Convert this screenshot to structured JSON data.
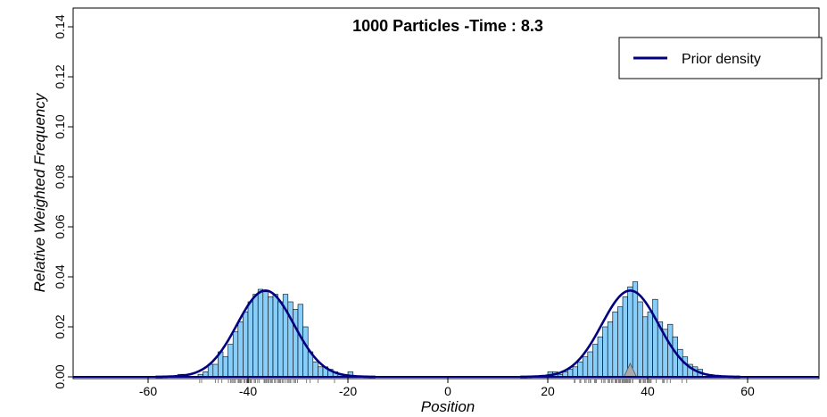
{
  "chart_data": {
    "type": "bar",
    "title": "1000  Particles -Time :   8.3",
    "xlabel": "Position",
    "ylabel": "Relative Weighted Frequency",
    "xlim": [
      -75,
      75
    ],
    "ylim": [
      0,
      0.14
    ],
    "x_ticks": [
      -60,
      -40,
      -20,
      0,
      20,
      40,
      60
    ],
    "y_ticks": [
      0.0,
      0.02,
      0.04,
      0.06,
      0.08,
      0.1,
      0.12,
      0.14
    ],
    "x_tick_labels": [
      "-60",
      "-40",
      "-20",
      "0",
      "20",
      "40",
      "60"
    ],
    "y_tick_labels": [
      "0.00",
      "0.02",
      "0.04",
      "0.06",
      "0.08",
      "0.10",
      "0.12",
      "0.14"
    ],
    "bin_width": 1,
    "histogram": {
      "name": "Relative weighted frequency",
      "bins_start": [
        -54,
        -53,
        -52,
        -51,
        -50,
        -49,
        -48,
        -47,
        -46,
        -45,
        -44,
        -43,
        -42,
        -41,
        -40,
        -39,
        -38,
        -37,
        -36,
        -35,
        -34,
        -33,
        -32,
        -31,
        -30,
        -29,
        -28,
        -27,
        -26,
        -25,
        -24,
        -23,
        -22,
        -21,
        -20,
        20,
        21,
        22,
        23,
        24,
        25,
        26,
        27,
        28,
        29,
        30,
        31,
        32,
        33,
        34,
        35,
        36,
        37,
        38,
        39,
        40,
        41,
        42,
        43,
        44,
        45,
        46,
        47,
        48,
        49,
        50
      ],
      "values": [
        0.001,
        0.001,
        0.0,
        0.0,
        0.001,
        0.002,
        0.005,
        0.005,
        0.01,
        0.008,
        0.013,
        0.018,
        0.022,
        0.026,
        0.03,
        0.033,
        0.035,
        0.034,
        0.032,
        0.033,
        0.03,
        0.033,
        0.03,
        0.027,
        0.029,
        0.02,
        0.01,
        0.006,
        0.004,
        0.004,
        0.003,
        0.002,
        0.001,
        0.0,
        0.002,
        0.002,
        0.002,
        0.001,
        0.002,
        0.003,
        0.004,
        0.006,
        0.008,
        0.01,
        0.013,
        0.016,
        0.02,
        0.022,
        0.026,
        0.028,
        0.032,
        0.036,
        0.038,
        0.03,
        0.024,
        0.026,
        0.031,
        0.022,
        0.019,
        0.021,
        0.016,
        0.011,
        0.008,
        0.005,
        0.004,
        0.003
      ]
    },
    "series": [
      {
        "name": "Prior density",
        "type": "line",
        "color": "#000080",
        "peaks": [
          {
            "x": -36.5,
            "y": 0.0345
          },
          {
            "x": 36.5,
            "y": 0.0345
          }
        ]
      }
    ],
    "rug_marker": {
      "x": 36,
      "label": ""
    },
    "legend": {
      "entries": [
        "Prior density"
      ],
      "position": "top-right"
    },
    "colors": {
      "bar_fill": "#87CEFA",
      "bar_stroke": "#000000",
      "line": "#000080",
      "rug": "#808080",
      "marker": "#A9A9A9"
    },
    "grid": false
  }
}
